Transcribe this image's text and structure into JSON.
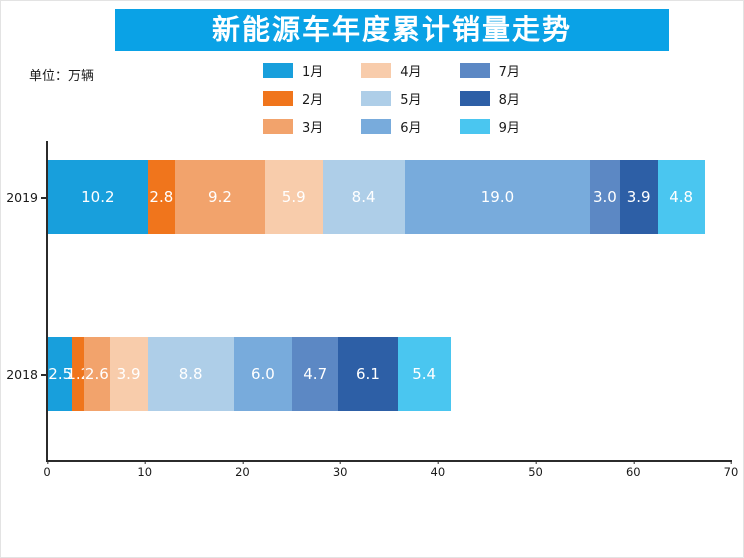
{
  "title": "新能源车年度累计销量走势",
  "unit_label": "单位：万辆",
  "colors": {
    "title_bar": "#0aa2e6",
    "title_text": "#ffffff",
    "axis": "#2b2b2b",
    "value_text": "#ffffff"
  },
  "chart_data": {
    "type": "bar",
    "orientation": "horizontal",
    "stacked": true,
    "title": "新能源车年度累计销量走势",
    "unit": "万辆",
    "categories": [
      "2019",
      "2018"
    ],
    "series": [
      {
        "name": "1月",
        "color": "#189fdc",
        "values": [
          10.2,
          2.5
        ]
      },
      {
        "name": "2月",
        "color": "#f0751c",
        "values": [
          2.8,
          1.2
        ]
      },
      {
        "name": "3月",
        "color": "#f2a36c",
        "values": [
          9.2,
          2.6
        ]
      },
      {
        "name": "4月",
        "color": "#f8ccab",
        "values": [
          5.9,
          3.9
        ]
      },
      {
        "name": "5月",
        "color": "#aecee8",
        "values": [
          8.4,
          8.8
        ]
      },
      {
        "name": "6月",
        "color": "#78abdc",
        "values": [
          19.0,
          6.0
        ]
      },
      {
        "name": "7月",
        "color": "#5c88c4",
        "values": [
          3.0,
          4.7
        ]
      },
      {
        "name": "8月",
        "color": "#2d5fa6",
        "values": [
          3.9,
          6.1
        ]
      },
      {
        "name": "9月",
        "color": "#4ac6f0",
        "values": [
          4.8,
          5.4
        ]
      }
    ],
    "xlim": [
      0,
      70
    ],
    "xticks": [
      0,
      10,
      20,
      30,
      40,
      50,
      60,
      70
    ],
    "legend_position": "top",
    "grid": false
  }
}
